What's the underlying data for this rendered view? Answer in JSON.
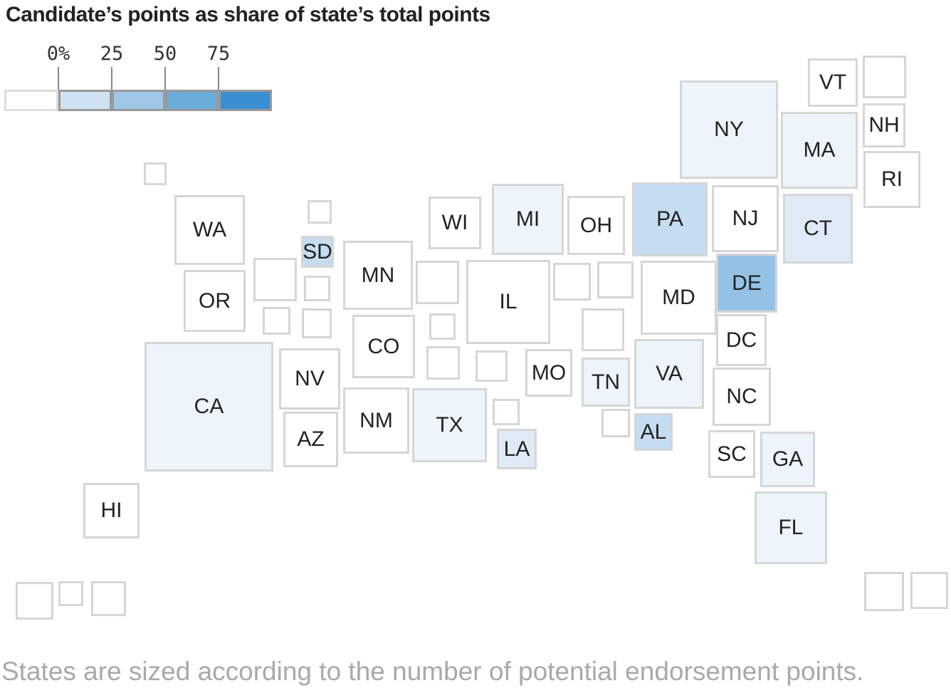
{
  "title": "Candidate’s points as share of state’s total points",
  "note": "States are sized according to the number of potential endorsement points.",
  "legend": {
    "ticks": [
      "0%",
      "25",
      "50",
      "75"
    ],
    "bins": [
      {
        "range": [
          0,
          0
        ],
        "color": "#ffffff"
      },
      {
        "range": [
          0,
          25
        ],
        "color": "#cfe2f3"
      },
      {
        "range": [
          25,
          50
        ],
        "color": "#9ec8e6"
      },
      {
        "range": [
          50,
          75
        ],
        "color": "#6aaddb"
      },
      {
        "range": [
          75,
          100
        ],
        "color": "#3a8fd3"
      }
    ]
  },
  "colors": {
    "border": "#d6d6d6",
    "none": "#ffffff",
    "faint": "#edf4fb",
    "light": "#dfeaf6",
    "mid": "#c6dcf1",
    "dark": "#94c2e6"
  },
  "chart_data": {
    "type": "map",
    "title": "Candidate’s points as share of state’s total points",
    "states": [
      {
        "label": "VT",
        "shade": "none"
      },
      {
        "label": "NH",
        "shade": "none"
      },
      {
        "label": "NY",
        "shade": "faint"
      },
      {
        "label": "MA",
        "shade": "faint"
      },
      {
        "label": "RI",
        "shade": "none"
      },
      {
        "label": "WA",
        "shade": "none"
      },
      {
        "label": "SD",
        "shade": "mid"
      },
      {
        "label": "WI",
        "shade": "none"
      },
      {
        "label": "MI",
        "shade": "faint"
      },
      {
        "label": "OH",
        "shade": "none"
      },
      {
        "label": "PA",
        "shade": "mid"
      },
      {
        "label": "NJ",
        "shade": "none"
      },
      {
        "label": "CT",
        "shade": "light"
      },
      {
        "label": "MN",
        "shade": "none"
      },
      {
        "label": "OR",
        "shade": "none"
      },
      {
        "label": "IL",
        "shade": "none"
      },
      {
        "label": "MD",
        "shade": "none"
      },
      {
        "label": "DE",
        "shade": "dark"
      },
      {
        "label": "CO",
        "shade": "none"
      },
      {
        "label": "DC",
        "shade": "none"
      },
      {
        "label": "CA",
        "shade": "faint"
      },
      {
        "label": "NV",
        "shade": "none"
      },
      {
        "label": "MO",
        "shade": "none"
      },
      {
        "label": "TN",
        "shade": "faint"
      },
      {
        "label": "VA",
        "shade": "faint"
      },
      {
        "label": "NC",
        "shade": "none"
      },
      {
        "label": "NM",
        "shade": "none"
      },
      {
        "label": "TX",
        "shade": "faint"
      },
      {
        "label": "AZ",
        "shade": "none"
      },
      {
        "label": "AL",
        "shade": "mid"
      },
      {
        "label": "LA",
        "shade": "light"
      },
      {
        "label": "SC",
        "shade": "none"
      },
      {
        "label": "GA",
        "shade": "faint"
      },
      {
        "label": "FL",
        "shade": "faint"
      },
      {
        "label": "HI",
        "shade": "none"
      }
    ]
  }
}
